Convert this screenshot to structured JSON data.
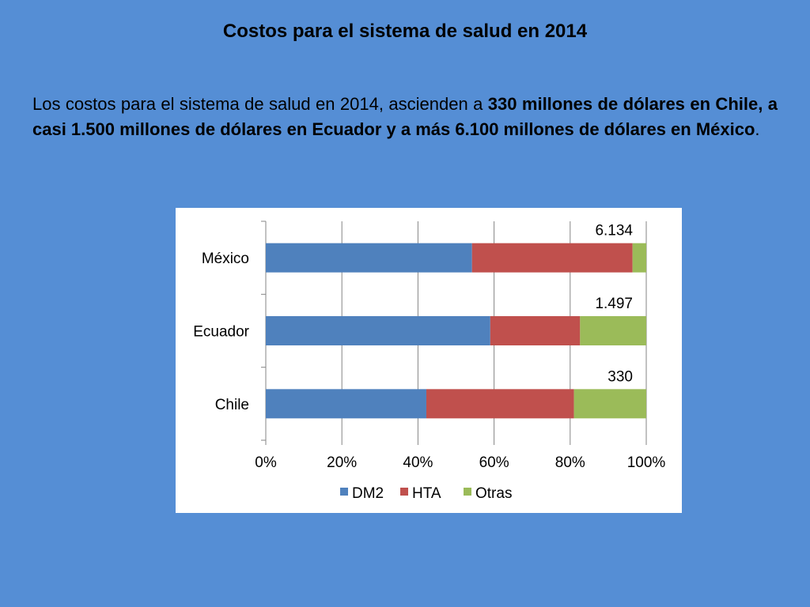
{
  "slide": {
    "title": "Costos para el sistema de salud en 2014",
    "paragraph": [
      {
        "text": "Los costos para el sistema de salud en 2014, ascienden a ",
        "bold": false
      },
      {
        "text": "330 millones de dólares en Chile, a casi 1.500 millones de dólares en Ecuador y a más 6.100 millones de dólares en México",
        "bold": true
      },
      {
        "text": ".",
        "bold": false
      }
    ]
  },
  "colors": {
    "background": "#558ED5",
    "DM2": "#4F81BD",
    "HTA": "#C0504D",
    "Otras": "#9BBB59"
  },
  "chart_data": {
    "type": "bar",
    "orientation": "horizontal",
    "stacked": "percent",
    "categories": [
      "México",
      "Ecuador",
      "Chile"
    ],
    "series": [
      {
        "name": "DM2",
        "values": [
          54.2,
          59.0,
          42.2
        ]
      },
      {
        "name": "HTA",
        "values": [
          42.2,
          23.6,
          38.8
        ]
      },
      {
        "name": "Otras",
        "values": [
          3.6,
          17.4,
          19.0
        ]
      }
    ],
    "totals": [
      "6.134",
      "1.497",
      "330"
    ],
    "xlim": [
      0,
      100
    ],
    "xticks": [
      "0%",
      "20%",
      "40%",
      "60%",
      "80%",
      "100%"
    ],
    "grid": true,
    "legend": "bottom"
  }
}
